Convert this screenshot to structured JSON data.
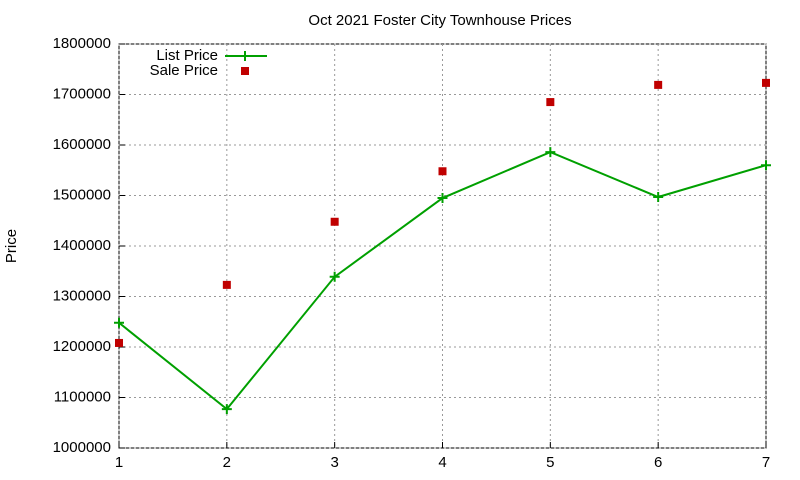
{
  "chart_data": {
    "type": "line",
    "title": "Oct 2021 Foster City Townhouse Prices",
    "y_label": "Price",
    "x": [
      1,
      2,
      3,
      4,
      5,
      6,
      7
    ],
    "series": [
      {
        "name": "List Price",
        "color": "#00a000",
        "line": true,
        "marker": "plus",
        "values": [
          1248000,
          1077000,
          1339000,
          1495000,
          1586000,
          1497000,
          1560000
        ]
      },
      {
        "name": "Sale Price",
        "color": "#c00000",
        "line": false,
        "marker": "square",
        "values": [
          1208000,
          1323000,
          1448000,
          1548000,
          1685000,
          1719000,
          1723000
        ]
      }
    ],
    "xlim": [
      1,
      7
    ],
    "xticks": [
      1,
      2,
      3,
      4,
      5,
      6,
      7
    ],
    "ylim": [
      1000000,
      1800000
    ],
    "yticks": [
      1000000,
      1100000,
      1200000,
      1300000,
      1400000,
      1500000,
      1600000,
      1700000,
      1800000
    ],
    "grid": true,
    "legend": "top-left"
  }
}
